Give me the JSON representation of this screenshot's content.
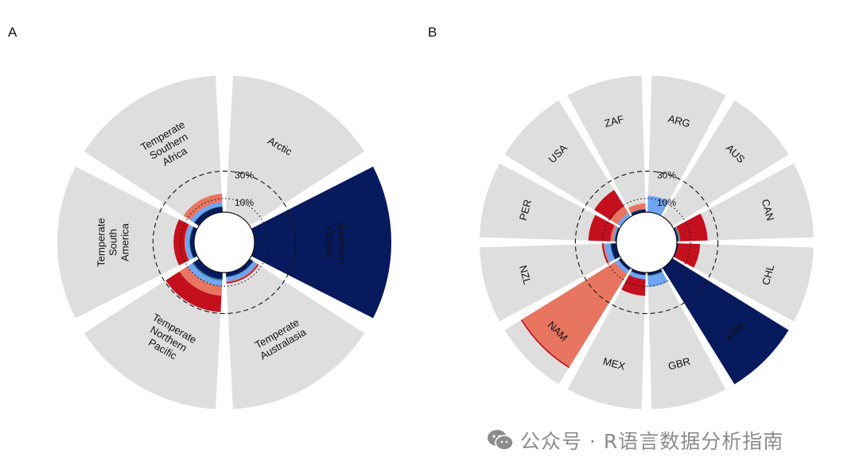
{
  "panels": [
    {
      "label": "A"
    },
    {
      "label": "B"
    }
  ],
  "watermark": {
    "text": "公众号 · R语言数据分析指南",
    "icon": "wechat-icon"
  },
  "colors": {
    "background_bar": "#dedede",
    "dark_blue": "#081a5e",
    "light_blue": "#6fa5f2",
    "teal": "#2a7f8f",
    "salmon": "#e87560",
    "red": "#c4101e"
  },
  "chart_data": [
    {
      "type": "bar",
      "polar": true,
      "panel": "A",
      "categories": [
        "Arctic",
        "Southern Ocean",
        "Temperate Australasia",
        "Temperate Northern Pacific",
        "Temperate South America",
        "Temperate Southern Africa"
      ],
      "category_labels": [
        [
          "Arctic"
        ],
        [
          "Southern",
          "Ocean"
        ],
        [
          "Temperate",
          "Australasia"
        ],
        [
          "Temperate",
          "Northern",
          "Pacific"
        ],
        [
          "Temperate",
          "South",
          "America"
        ],
        [
          "Temperate",
          "Southern",
          "Africa"
        ]
      ],
      "label_colors": [
        "#111111",
        "#111111",
        "#111111",
        "#111111",
        "#111111",
        "#111111"
      ],
      "series": [
        {
          "name": "",
          "color": "#081a5e",
          "values": [
            0,
            100,
            3,
            5,
            3,
            4
          ]
        },
        {
          "name": "",
          "color": "#2a7f8f",
          "values": [
            0,
            0,
            0.5,
            1,
            0.5,
            0.5
          ]
        },
        {
          "name": "",
          "color": "#6fa5f2",
          "values": [
            0,
            0,
            3,
            4,
            3,
            3
          ]
        },
        {
          "name": "",
          "color": "#e87560",
          "values": [
            0,
            0,
            0.5,
            7,
            0.5,
            6
          ]
        },
        {
          "name": "",
          "color": "#c4101e",
          "values": [
            0,
            0,
            1,
            12,
            8,
            0
          ]
        }
      ],
      "reference_rings": [
        {
          "label": "10%",
          "value": 10,
          "style": "dotted"
        },
        {
          "label": "30%",
          "value": 30,
          "style": "dashed"
        }
      ],
      "ylim": [
        0,
        100
      ]
    },
    {
      "type": "bar",
      "polar": true,
      "panel": "B",
      "categories": [
        "ARG",
        "AUS",
        "CAN",
        "CHL",
        "FRA",
        "GBR",
        "MEX",
        "NAM",
        "NZL",
        "PER",
        "USA",
        "ZAF"
      ],
      "category_labels": [
        [
          "ARG"
        ],
        [
          "AUS"
        ],
        [
          "CAN"
        ],
        [
          "CHL"
        ],
        [
          "FRA"
        ],
        [
          "GBR"
        ],
        [
          "MEX"
        ],
        [
          "NAM"
        ],
        [
          "NZL"
        ],
        [
          "PER"
        ],
        [
          "USA"
        ],
        [
          "ZAF"
        ]
      ],
      "label_colors": [
        "#111111",
        "#111111",
        "#111111",
        "#111111",
        "#111111",
        "#111111",
        "#111111",
        "#111111",
        "#111111",
        "#111111",
        "#111111",
        "#111111"
      ],
      "series": [
        {
          "name": "",
          "color": "#081a5e",
          "values": [
            0,
            0,
            1,
            1,
            100,
            2,
            2,
            2,
            4,
            1,
            0,
            2
          ]
        },
        {
          "name": "",
          "color": "#2a7f8f",
          "values": [
            0,
            0,
            1,
            0,
            0,
            0.5,
            0,
            0,
            0.5,
            0.5,
            0,
            0.5
          ]
        },
        {
          "name": "",
          "color": "#6fa5f2",
          "values": [
            12,
            0,
            0,
            0,
            0,
            8,
            3,
            3,
            4,
            1,
            3,
            0
          ]
        },
        {
          "name": "",
          "color": "#e87560",
          "values": [
            0,
            0.5,
            0.5,
            0,
            0,
            0,
            0,
            80,
            1,
            2,
            6,
            4
          ]
        },
        {
          "name": "",
          "color": "#c4101e",
          "values": [
            0,
            0,
            20,
            16,
            0,
            0,
            12,
            1,
            1,
            16,
            14,
            0
          ]
        }
      ],
      "reference_rings": [
        {
          "label": "10%",
          "value": 10,
          "style": "dotted"
        },
        {
          "label": "30%",
          "value": 30,
          "style": "dashed"
        }
      ],
      "ylim": [
        0,
        100
      ]
    }
  ]
}
